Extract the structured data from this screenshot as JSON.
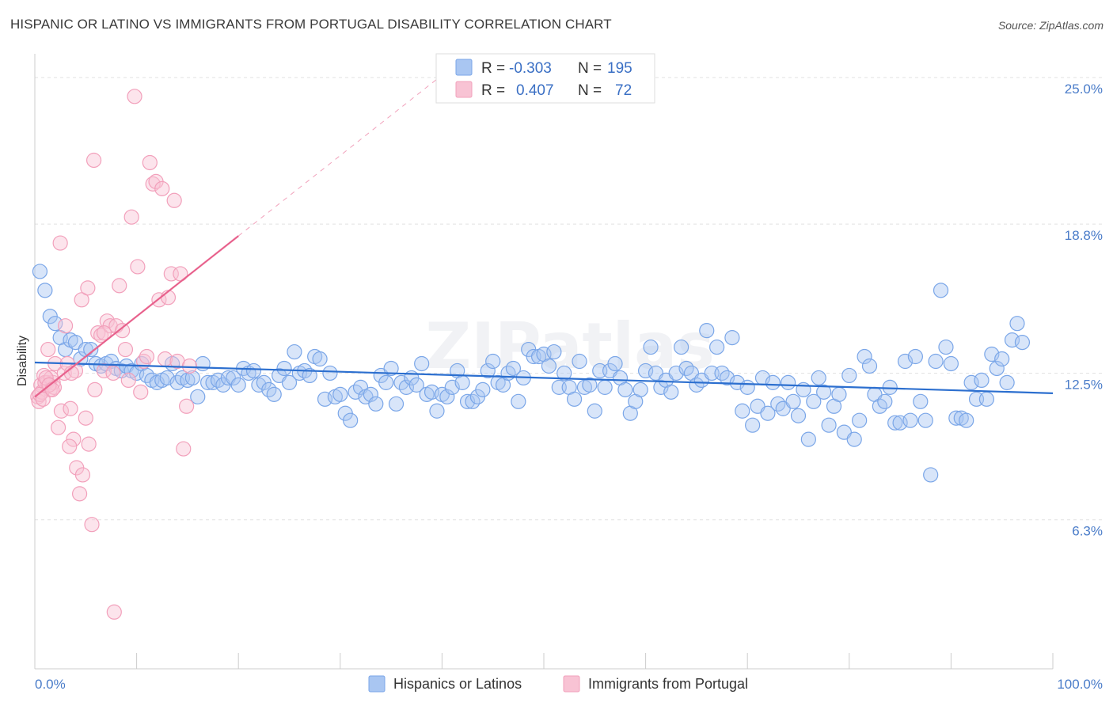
{
  "title": "HISPANIC OR LATINO VS IMMIGRANTS FROM PORTUGAL DISABILITY CORRELATION CHART",
  "source": "Source: ZipAtlas.com",
  "watermark": "ZIPatlas",
  "chart_data": {
    "type": "scatter",
    "ylabel": "Disability",
    "xlim": [
      0,
      100
    ],
    "ylim": [
      0,
      26.0
    ],
    "x_tick_labels": [
      "0.0%",
      "100.0%"
    ],
    "y_ticks": [
      {
        "value": 6.3,
        "label": "6.3%"
      },
      {
        "value": 12.5,
        "label": "12.5%"
      },
      {
        "value": 18.8,
        "label": "18.8%"
      },
      {
        "value": 25.0,
        "label": "25.0%"
      }
    ],
    "grid": "horizontal dashed",
    "legend_position": "bottom-center",
    "stats": [
      {
        "r_label": "R =",
        "r_value": "-0.303",
        "n_label": "N =",
        "n_value": "195",
        "color": "#7aa6e8"
      },
      {
        "r_label": "R =",
        "r_value": "0.407",
        "n_label": "N =",
        "n_value": "72",
        "color": "#f2a0bb"
      }
    ],
    "series": [
      {
        "name": "Hispanics or Latinos",
        "color": "#7aa6e8",
        "fill": "#a9c6f2",
        "trend": {
          "x0": 0,
          "y0": 12.95,
          "x1": 100,
          "y1": 11.65,
          "color": "#2c6fcf"
        },
        "points": [
          [
            0.5,
            16.8
          ],
          [
            1,
            16
          ],
          [
            1.5,
            14.9
          ],
          [
            2,
            14.6
          ],
          [
            2.5,
            14
          ],
          [
            3,
            13.5
          ],
          [
            3.5,
            13.9
          ],
          [
            4,
            13.8
          ],
          [
            4.5,
            13.1
          ],
          [
            5,
            13.5
          ],
          [
            5.5,
            13.5
          ],
          [
            6,
            12.9
          ],
          [
            6.5,
            12.8
          ],
          [
            7,
            12.9
          ],
          [
            7.5,
            13
          ],
          [
            8,
            12.7
          ],
          [
            8.5,
            12.6
          ],
          [
            9,
            12.8
          ],
          [
            9.5,
            12.6
          ],
          [
            10,
            12.5
          ],
          [
            10.5,
            12.9
          ],
          [
            11,
            12.4
          ],
          [
            11.5,
            12.2
          ],
          [
            12,
            12.1
          ],
          [
            12.5,
            12.2
          ],
          [
            13,
            12.3
          ],
          [
            13.5,
            12.9
          ],
          [
            14,
            12.1
          ],
          [
            14.5,
            12.3
          ],
          [
            15,
            12.2
          ],
          [
            15.5,
            12.3
          ],
          [
            16,
            11.5
          ],
          [
            16.5,
            12.9
          ],
          [
            17,
            12.1
          ],
          [
            17.5,
            12.1
          ],
          [
            18,
            12.2
          ],
          [
            18.5,
            12
          ],
          [
            19,
            12.3
          ],
          [
            19.5,
            12.3
          ],
          [
            20,
            12
          ],
          [
            20.5,
            12.7
          ],
          [
            21,
            12.5
          ],
          [
            21.5,
            12.6
          ],
          [
            22,
            12
          ],
          [
            22.5,
            12.1
          ],
          [
            23,
            11.8
          ],
          [
            23.5,
            11.6
          ],
          [
            24,
            12.4
          ],
          [
            24.5,
            12.7
          ],
          [
            25,
            12.1
          ],
          [
            25.5,
            13.4
          ],
          [
            26,
            12.5
          ],
          [
            26.5,
            12.6
          ],
          [
            27,
            12.4
          ],
          [
            27.5,
            13.2
          ],
          [
            28,
            13.1
          ],
          [
            28.5,
            11.4
          ],
          [
            29,
            12.5
          ],
          [
            29.5,
            11.5
          ],
          [
            30,
            11.6
          ],
          [
            30.5,
            10.8
          ],
          [
            31,
            10.5
          ],
          [
            31.5,
            11.7
          ],
          [
            32,
            11.9
          ],
          [
            32.5,
            11.5
          ],
          [
            33,
            11.6
          ],
          [
            33.5,
            11.2
          ],
          [
            34,
            12.4
          ],
          [
            34.5,
            12.1
          ],
          [
            35,
            12.7
          ],
          [
            35.5,
            11.2
          ],
          [
            36,
            12.1
          ],
          [
            36.5,
            11.9
          ],
          [
            37,
            12.3
          ],
          [
            37.5,
            12
          ],
          [
            38,
            12.9
          ],
          [
            38.5,
            11.6
          ],
          [
            39,
            11.7
          ],
          [
            39.5,
            10.9
          ],
          [
            40,
            11.6
          ],
          [
            40.5,
            11.5
          ],
          [
            41,
            11.9
          ],
          [
            41.5,
            12.6
          ],
          [
            42,
            12.1
          ],
          [
            42.5,
            11.3
          ],
          [
            43,
            11.3
          ],
          [
            43.5,
            11.5
          ],
          [
            44,
            11.8
          ],
          [
            44.5,
            12.6
          ],
          [
            45,
            13
          ],
          [
            45.5,
            12.1
          ],
          [
            46,
            12
          ],
          [
            46.5,
            12.5
          ],
          [
            47,
            12.7
          ],
          [
            47.5,
            11.3
          ],
          [
            48,
            12.3
          ],
          [
            48.5,
            13.5
          ],
          [
            49,
            13.2
          ],
          [
            49.5,
            13.2
          ],
          [
            50,
            13.3
          ],
          [
            50.5,
            12.8
          ],
          [
            51,
            13.4
          ],
          [
            51.5,
            11.9
          ],
          [
            52,
            12.5
          ],
          [
            52.5,
            11.9
          ],
          [
            53,
            11.4
          ],
          [
            53.5,
            13
          ],
          [
            54,
            11.9
          ],
          [
            54.5,
            12
          ],
          [
            55,
            10.9
          ],
          [
            55.5,
            12.6
          ],
          [
            56,
            11.9
          ],
          [
            56.5,
            12.6
          ],
          [
            57,
            12.9
          ],
          [
            57.5,
            12.3
          ],
          [
            58,
            11.8
          ],
          [
            58.5,
            10.8
          ],
          [
            59,
            11.3
          ],
          [
            59.5,
            11.8
          ],
          [
            60,
            12.6
          ],
          [
            60.5,
            13.6
          ],
          [
            61,
            12.5
          ],
          [
            61.5,
            11.9
          ],
          [
            62,
            12.2
          ],
          [
            62.5,
            11.7
          ],
          [
            63,
            12.5
          ],
          [
            63.5,
            13.6
          ],
          [
            64,
            12.7
          ],
          [
            64.5,
            12.5
          ],
          [
            65,
            12
          ],
          [
            65.5,
            12.2
          ],
          [
            66,
            14.3
          ],
          [
            66.5,
            12.5
          ],
          [
            67,
            13.6
          ],
          [
            67.5,
            12.5
          ],
          [
            68,
            12.3
          ],
          [
            68.5,
            14
          ],
          [
            69,
            12.1
          ],
          [
            69.5,
            10.9
          ],
          [
            70,
            11.9
          ],
          [
            70.5,
            10.3
          ],
          [
            71,
            11.1
          ],
          [
            71.5,
            12.3
          ],
          [
            72,
            10.8
          ],
          [
            72.5,
            12.1
          ],
          [
            73,
            11.2
          ],
          [
            73.5,
            11
          ],
          [
            74,
            12.1
          ],
          [
            74.5,
            11.3
          ],
          [
            75,
            10.7
          ],
          [
            75.5,
            11.8
          ],
          [
            76,
            9.7
          ],
          [
            76.5,
            11.3
          ],
          [
            77,
            12.3
          ],
          [
            77.5,
            11.7
          ],
          [
            78,
            10.3
          ],
          [
            78.5,
            11.1
          ],
          [
            79,
            11.6
          ],
          [
            79.5,
            10
          ],
          [
            80,
            12.4
          ],
          [
            80.5,
            9.7
          ],
          [
            81,
            10.5
          ],
          [
            81.5,
            13.2
          ],
          [
            82,
            12.8
          ],
          [
            82.5,
            11.6
          ],
          [
            83,
            11.1
          ],
          [
            83.5,
            11.3
          ],
          [
            84,
            11.9
          ],
          [
            84.5,
            10.4
          ],
          [
            85,
            10.4
          ],
          [
            85.5,
            13
          ],
          [
            86,
            10.5
          ],
          [
            86.5,
            13.2
          ],
          [
            87,
            11.3
          ],
          [
            87.5,
            10.5
          ],
          [
            88,
            8.2
          ],
          [
            88.5,
            13
          ],
          [
            89,
            16
          ],
          [
            89.5,
            13.6
          ],
          [
            90,
            12.9
          ],
          [
            90.5,
            10.6
          ],
          [
            91,
            10.6
          ],
          [
            91.5,
            10.5
          ],
          [
            92,
            12.1
          ],
          [
            92.5,
            11.4
          ],
          [
            93,
            12.2
          ],
          [
            93.5,
            11.4
          ],
          [
            94,
            13.3
          ],
          [
            94.5,
            12.7
          ],
          [
            95,
            13.1
          ],
          [
            95.5,
            12.1
          ],
          [
            96,
            13.9
          ],
          [
            96.5,
            14.6
          ],
          [
            97,
            13.8
          ]
        ]
      },
      {
        "name": "Immigrants from Portugal",
        "color": "#f2a0bb",
        "fill": "#f8c3d4",
        "trend": {
          "x0": 0,
          "y0": 11.5,
          "x1": 20,
          "y1": 18.3,
          "dash_to_x": 40,
          "dash_to_y": 25.1,
          "color": "#e8628d"
        },
        "points": [
          [
            0.3,
            11.5
          ],
          [
            0.6,
            12
          ],
          [
            0.9,
            12.4
          ],
          [
            1.2,
            12.1
          ],
          [
            1.5,
            11.8
          ],
          [
            1.8,
            12.1
          ],
          [
            0.4,
            11.3
          ],
          [
            0.7,
            11.7
          ],
          [
            1,
            12.1
          ],
          [
            1.3,
            13.5
          ],
          [
            1.6,
            12.3
          ],
          [
            1.9,
            11.9
          ],
          [
            0.5,
            11.6
          ],
          [
            0.8,
            11.4
          ],
          [
            1.1,
            12.3
          ],
          [
            1.4,
            12
          ],
          [
            1.7,
            11.8
          ],
          [
            2,
            12.9
          ],
          [
            2.3,
            10.2
          ],
          [
            2.6,
            10.9
          ],
          [
            2.9,
            12.5
          ],
          [
            3.2,
            12.9
          ],
          [
            3.5,
            11
          ],
          [
            3.8,
            9.7
          ],
          [
            4.1,
            8.5
          ],
          [
            4.4,
            7.4
          ],
          [
            4.7,
            8.2
          ],
          [
            5,
            10.6
          ],
          [
            5.3,
            9.5
          ],
          [
            5.6,
            6.1
          ],
          [
            5.9,
            11.8
          ],
          [
            6.2,
            14.2
          ],
          [
            6.5,
            14.1
          ],
          [
            6.8,
            12.6
          ],
          [
            7.1,
            14.7
          ],
          [
            7.4,
            14.5
          ],
          [
            7.7,
            12.5
          ],
          [
            8,
            14.5
          ],
          [
            8.3,
            16.2
          ],
          [
            8.6,
            14.3
          ],
          [
            8.9,
            13.5
          ],
          [
            9.2,
            12.2
          ],
          [
            9.5,
            19.1
          ],
          [
            9.8,
            24.2
          ],
          [
            10.1,
            17
          ],
          [
            10.4,
            11.7
          ],
          [
            10.7,
            13
          ],
          [
            11,
            13.2
          ],
          [
            11.3,
            21.4
          ],
          [
            11.6,
            20.5
          ],
          [
            11.9,
            20.6
          ],
          [
            12.2,
            15.6
          ],
          [
            12.5,
            20.3
          ],
          [
            12.8,
            13.1
          ],
          [
            13.1,
            15.7
          ],
          [
            13.4,
            16.7
          ],
          [
            13.7,
            19.8
          ],
          [
            14,
            13
          ],
          [
            14.3,
            16.7
          ],
          [
            14.6,
            9.3
          ],
          [
            14.9,
            11.1
          ],
          [
            15.2,
            12.8
          ],
          [
            2.5,
            18
          ],
          [
            3,
            14.5
          ],
          [
            3.4,
            9.4
          ],
          [
            4,
            12.6
          ],
          [
            4.6,
            15.6
          ],
          [
            5.2,
            16.1
          ],
          [
            5.8,
            21.5
          ],
          [
            6.8,
            14.2
          ],
          [
            7.8,
            2.4
          ],
          [
            3.6,
            12.5
          ]
        ]
      }
    ]
  }
}
